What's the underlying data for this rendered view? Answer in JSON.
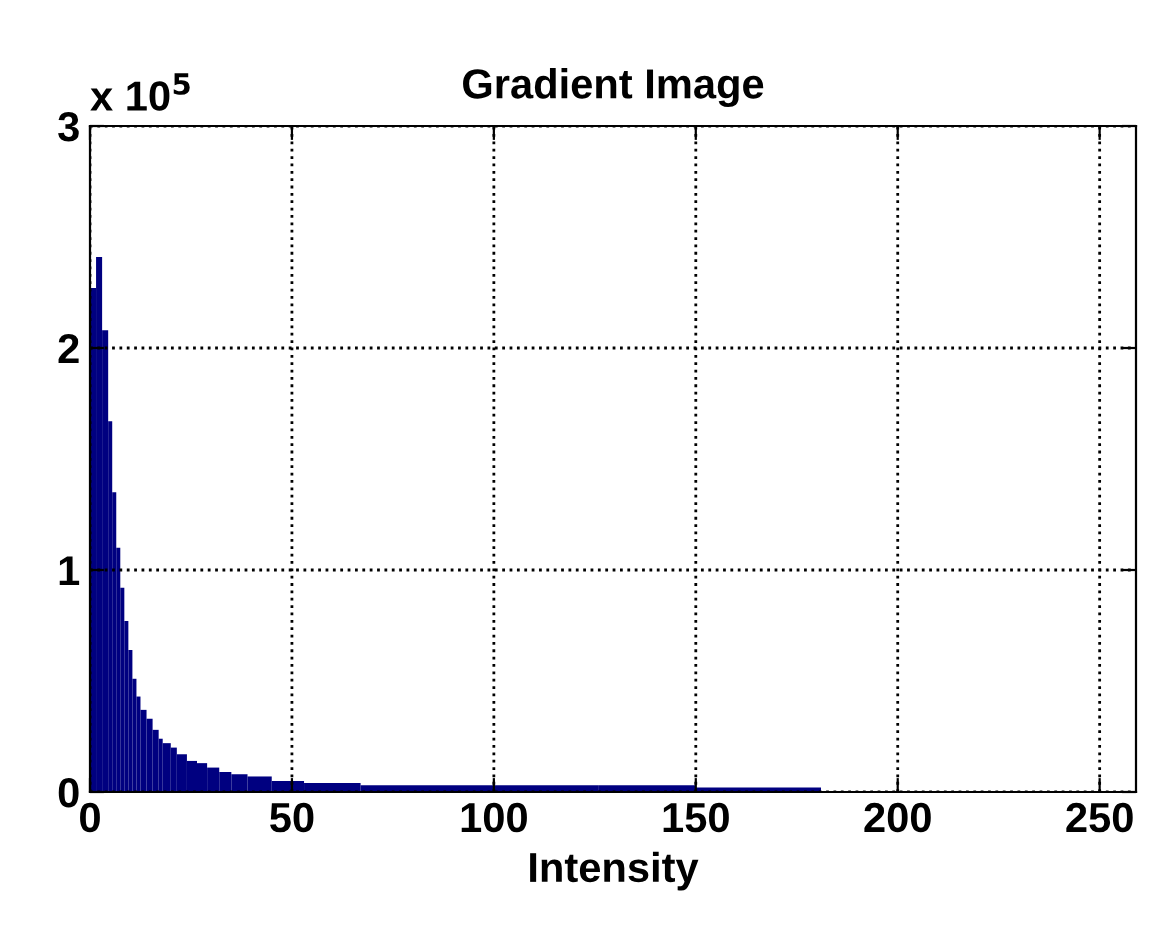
{
  "chart_data": {
    "type": "histogram",
    "title": "Gradient Image",
    "xlabel": "Intensity",
    "annotations": [
      "x 10$^{5}$"
    ],
    "bins": [
      0,
      1.5,
      3,
      4.5,
      5.5,
      6.5,
      7.5,
      8.5,
      9.5,
      10.5,
      11.5,
      12.5,
      14,
      15.5,
      17,
      18,
      20,
      21.5,
      24,
      26.5,
      29,
      32,
      35,
      39,
      45,
      53,
      67,
      126,
      150,
      181
    ],
    "values": [
      2.27,
      2.41,
      2.08,
      1.67,
      1.35,
      1.1,
      0.92,
      0.77,
      0.64,
      0.51,
      0.43,
      0.37,
      0.33,
      0.28,
      0.24,
      0.22,
      0.2,
      0.17,
      0.14,
      0.13,
      0.11,
      0.09,
      0.08,
      0.07,
      0.05,
      0.04,
      0.03,
      0.03,
      0.02
    ],
    "color": "#000080",
    "xlim": [
      0,
      259
    ],
    "xticks": [
      0,
      50,
      100,
      150,
      200,
      250
    ],
    "ylim": [
      0,
      3
    ],
    "yticks": [
      0,
      1,
      2,
      3
    ],
    "grid": true,
    "line_style": "dotted"
  }
}
